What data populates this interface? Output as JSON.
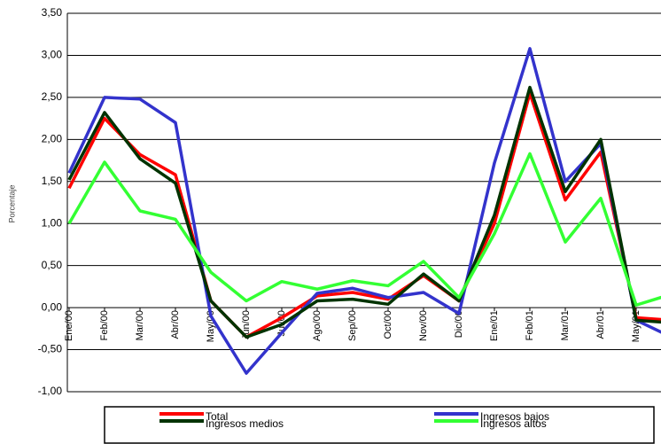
{
  "chart_data": {
    "type": "line",
    "y_label": "Porcentaje",
    "categories": [
      "Ene/00",
      "Feb/00",
      "Mar/00",
      "Abr/00",
      "May/00",
      "Jun/00",
      "Jul/00",
      "Ago/00",
      "Sep/00",
      "Oct/00",
      "Nov/00",
      "Dic/00",
      "Ene/01",
      "Feb/01",
      "Mar/01",
      "Abr/01",
      "May/01",
      null
    ],
    "series": [
      {
        "name": "Total",
        "color": "#ff0000",
        "values": [
          1.42,
          2.25,
          1.82,
          1.58,
          0.08,
          -0.35,
          -0.12,
          0.14,
          0.18,
          0.1,
          0.38,
          0.08,
          1.0,
          2.55,
          1.28,
          1.85,
          -0.12,
          -0.15
        ]
      },
      {
        "name": "Ingresos bajos",
        "color": "#3333cc",
        "values": [
          1.6,
          2.5,
          2.48,
          2.2,
          -0.1,
          -0.78,
          -0.3,
          0.17,
          0.23,
          0.12,
          0.18,
          -0.07,
          1.72,
          3.08,
          1.5,
          1.95,
          -0.15,
          -0.35
        ]
      },
      {
        "name": "Ingresos medios",
        "color": "#003300",
        "values": [
          1.52,
          2.32,
          1.77,
          1.48,
          0.08,
          -0.35,
          -0.2,
          0.08,
          0.1,
          0.04,
          0.4,
          0.08,
          1.1,
          2.62,
          1.38,
          2.0,
          -0.15,
          -0.18
        ]
      },
      {
        "name": "Ingresos altos",
        "color": "#33ff33",
        "values": [
          1.0,
          1.73,
          1.15,
          1.05,
          0.42,
          0.08,
          0.31,
          0.22,
          0.32,
          0.26,
          0.55,
          0.12,
          0.88,
          1.83,
          0.78,
          1.3,
          0.03,
          0.16
        ]
      }
    ],
    "ylim": [
      -1.0,
      3.5
    ],
    "yticks": [
      {
        "value": -1.0,
        "label": "-1,00"
      },
      {
        "value": -0.5,
        "label": "-0,50"
      },
      {
        "value": 0.0,
        "label": "0,00"
      },
      {
        "value": 0.5,
        "label": "0,50"
      },
      {
        "value": 1.0,
        "label": "1,00"
      },
      {
        "value": 1.5,
        "label": "1,50"
      },
      {
        "value": 2.0,
        "label": "2,00"
      },
      {
        "value": 2.5,
        "label": "2,50"
      },
      {
        "value": 3.0,
        "label": "3,00"
      },
      {
        "value": 3.5,
        "label": "3,50"
      }
    ],
    "grid": true
  }
}
